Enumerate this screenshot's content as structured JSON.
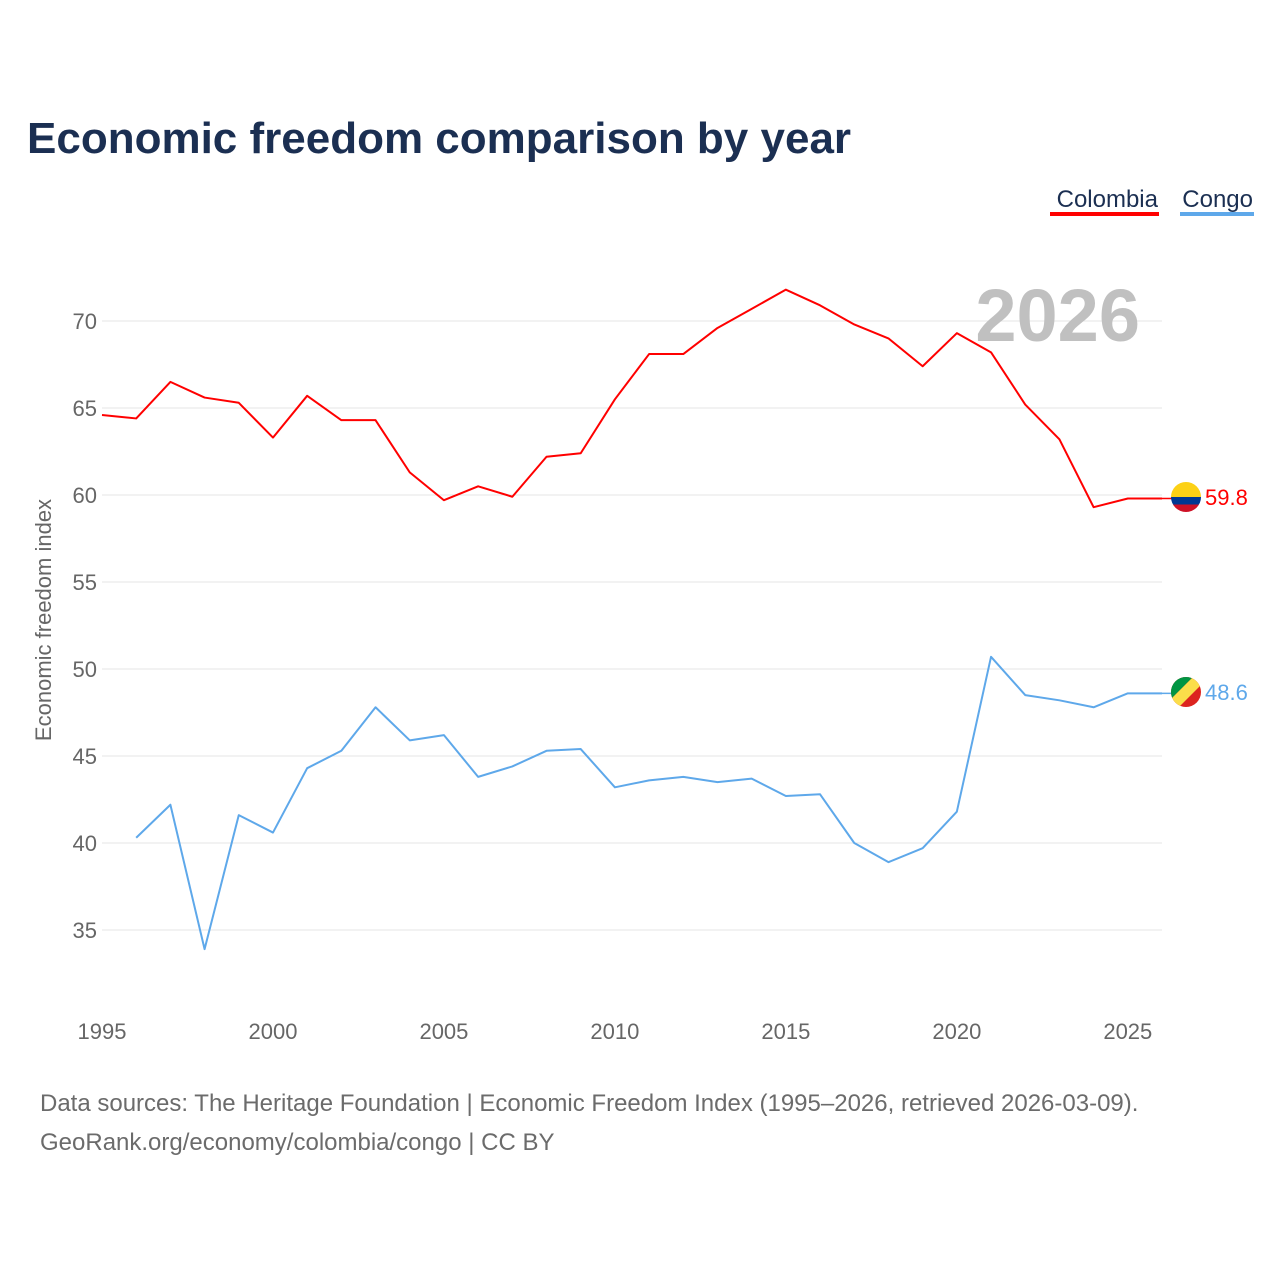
{
  "chart_data": {
    "type": "line",
    "title": "Economic freedom comparison by year",
    "xlabel": "",
    "ylabel": "Economic freedom index",
    "xlim": [
      1995,
      2026
    ],
    "ylim": [
      30,
      74
    ],
    "x_ticks": [
      1995,
      2000,
      2005,
      2010,
      2015,
      2020,
      2025
    ],
    "y_ticks": [
      35,
      40,
      45,
      50,
      55,
      60,
      65,
      70
    ],
    "grid": true,
    "legend_placement": "top-right",
    "year_label": "2026",
    "series": [
      {
        "name": "Colombia",
        "color": "#ff0000",
        "end_label": "59.8",
        "x": [
          1995,
          1996,
          1997,
          1998,
          1999,
          2000,
          2001,
          2002,
          2003,
          2004,
          2005,
          2006,
          2007,
          2008,
          2009,
          2010,
          2011,
          2012,
          2013,
          2014,
          2015,
          2016,
          2017,
          2018,
          2019,
          2020,
          2021,
          2022,
          2023,
          2024,
          2025,
          2026
        ],
        "values": [
          64.6,
          64.4,
          66.5,
          65.6,
          65.3,
          63.3,
          65.7,
          64.3,
          64.3,
          61.3,
          59.7,
          60.5,
          59.9,
          62.2,
          62.4,
          65.5,
          68.1,
          68.1,
          69.6,
          70.7,
          71.8,
          70.9,
          69.8,
          69.0,
          67.4,
          69.3,
          68.2,
          65.2,
          63.2,
          59.3,
          59.8,
          59.8
        ]
      },
      {
        "name": "Congo",
        "color": "#5ea8ea",
        "end_label": "48.6",
        "x": [
          1996,
          1997,
          1998,
          1999,
          2000,
          2001,
          2002,
          2003,
          2004,
          2005,
          2006,
          2007,
          2008,
          2009,
          2010,
          2011,
          2012,
          2013,
          2014,
          2015,
          2016,
          2017,
          2018,
          2019,
          2020,
          2021,
          2022,
          2023,
          2024,
          2025,
          2026
        ],
        "values": [
          40.3,
          42.2,
          33.9,
          41.6,
          40.6,
          44.3,
          45.3,
          47.8,
          45.9,
          46.2,
          43.8,
          44.4,
          45.3,
          45.4,
          43.2,
          43.6,
          43.8,
          43.5,
          43.7,
          42.7,
          42.8,
          40.0,
          38.9,
          39.7,
          41.8,
          50.7,
          48.5,
          48.2,
          47.8,
          48.6,
          48.6
        ]
      }
    ]
  },
  "footer": {
    "line1": "Data sources: The Heritage Foundation | Economic Freedom Index (1995–2026, retrieved 2026-03-09).",
    "line2": "GeoRank.org/economy/colombia/congo | CC BY"
  }
}
